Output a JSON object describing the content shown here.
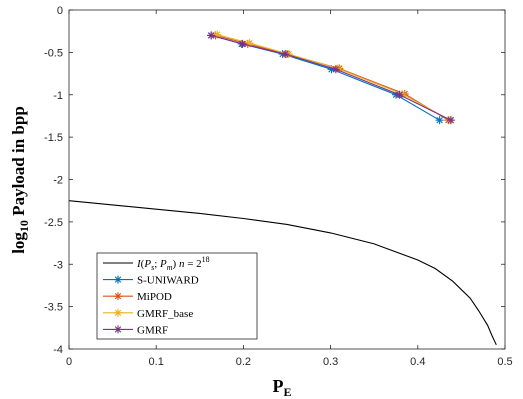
{
  "chart_data": {
    "type": "line",
    "xlabel": "P",
    "xlabel_sub": "E",
    "ylabel_prefix": "log",
    "ylabel_sub": "10",
    "ylabel_suffix": " Payload in bpp",
    "xlim": [
      0,
      0.5
    ],
    "ylim": [
      -4,
      0
    ],
    "xticks": [
      0,
      0.1,
      0.2,
      0.3,
      0.4,
      0.5
    ],
    "xtick_labels": [
      "0",
      "0.1",
      "0.2",
      "0.3",
      "0.4",
      "0.5"
    ],
    "yticks": [
      0,
      -0.5,
      -1,
      -1.5,
      -2,
      -2.5,
      -3,
      -3.5,
      -4
    ],
    "ytick_labels": [
      "0",
      "-0.5",
      "-1",
      "-1.5",
      "-2",
      "-2.5",
      "-3",
      "-3.5",
      "-4"
    ],
    "grid": false,
    "legend_position": "bottom-left",
    "series": [
      {
        "name": "I(P_s; P_m)   n = 2^18",
        "color": "#000000",
        "marker": "none",
        "points": [
          [
            0,
            -2.25
          ],
          [
            0.05,
            -2.3
          ],
          [
            0.1,
            -2.35
          ],
          [
            0.15,
            -2.4
          ],
          [
            0.2,
            -2.46
          ],
          [
            0.25,
            -2.53
          ],
          [
            0.3,
            -2.63
          ],
          [
            0.35,
            -2.76
          ],
          [
            0.4,
            -2.95
          ],
          [
            0.42,
            -3.05
          ],
          [
            0.44,
            -3.2
          ],
          [
            0.46,
            -3.4
          ],
          [
            0.47,
            -3.55
          ],
          [
            0.48,
            -3.72
          ],
          [
            0.485,
            -3.84
          ],
          [
            0.49,
            -3.95
          ]
        ]
      },
      {
        "name": "S-UNIWARD",
        "color": "#0072BD",
        "marker": "star",
        "points": [
          [
            0.163,
            -0.3
          ],
          [
            0.198,
            -0.4
          ],
          [
            0.245,
            -0.52
          ],
          [
            0.301,
            -0.7
          ],
          [
            0.375,
            -1.0
          ],
          [
            0.425,
            -1.3
          ]
        ]
      },
      {
        "name": "MiPOD",
        "color": "#D95319",
        "marker": "star",
        "points": [
          [
            0.168,
            -0.3
          ],
          [
            0.205,
            -0.4
          ],
          [
            0.25,
            -0.52
          ],
          [
            0.31,
            -0.69
          ],
          [
            0.385,
            -0.99
          ],
          [
            0.435,
            -1.3
          ]
        ]
      },
      {
        "name": "GMRF_base",
        "color": "#EDB120",
        "marker": "star",
        "points": [
          [
            0.17,
            -0.29
          ],
          [
            0.207,
            -0.39
          ],
          [
            0.252,
            -0.52
          ],
          [
            0.308,
            -0.69
          ],
          [
            0.382,
            -0.99
          ],
          [
            0.437,
            -1.3
          ]
        ]
      },
      {
        "name": "GMRF",
        "color": "#7E2F8E",
        "marker": "star",
        "points": [
          [
            0.163,
            -0.3
          ],
          [
            0.199,
            -0.4
          ],
          [
            0.248,
            -0.52
          ],
          [
            0.306,
            -0.7
          ],
          [
            0.379,
            -1.0
          ],
          [
            0.438,
            -1.3
          ]
        ]
      }
    ]
  }
}
